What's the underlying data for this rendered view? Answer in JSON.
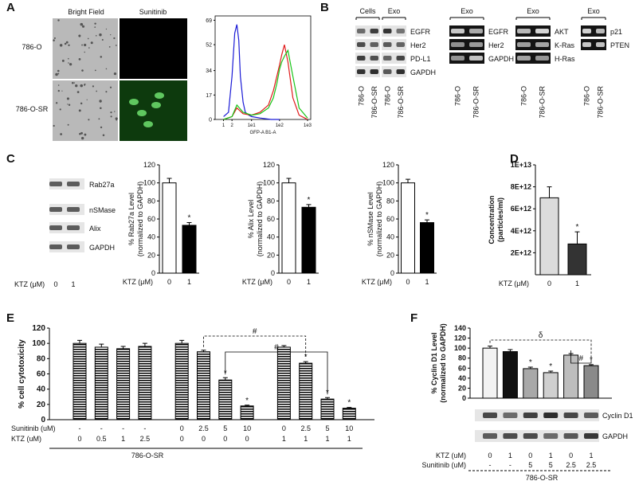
{
  "figure": {
    "panel_labels": [
      "A",
      "B",
      "C",
      "D",
      "E",
      "F"
    ],
    "a": {
      "columns": [
        "Bright Field",
        "Sunitinib"
      ],
      "rows": [
        "786-O",
        "786-O-SR"
      ]
    },
    "b_blots": [
      {
        "groups": [
          "Cells",
          "Exo"
        ],
        "bands": [
          "EGFR",
          "Her2",
          "PD-L1",
          "GAPDH"
        ],
        "lanes": [
          "786-O",
          "786-O-SR",
          "786-O",
          "786-O-SR"
        ]
      },
      {
        "groups": [
          "Exo"
        ],
        "bands": [
          "EGFR",
          "Her2",
          "GAPDH"
        ],
        "lanes": [
          "786-O",
          "786-O-SR"
        ]
      },
      {
        "groups": [
          "Exo"
        ],
        "bands": [
          "AKT",
          "K-Ras",
          "H-Ras"
        ],
        "lanes": [
          "786-O",
          "786-O-SR"
        ]
      },
      {
        "groups": [
          "Exo"
        ],
        "bands": [
          "p21",
          "PTEN"
        ],
        "lanes": [
          "786-O",
          "786-O-SR"
        ]
      }
    ],
    "c_blot": {
      "bands": [
        "Rab27a",
        "nSMase",
        "Alix",
        "GAPDH"
      ],
      "condition_label": "KTZ (μM)",
      "lanes": [
        "0",
        "1"
      ]
    },
    "f_blot": {
      "bands": [
        "Cyclin D1",
        "GAPDH"
      ]
    }
  },
  "chart_data": [
    {
      "type": "line",
      "xlabel": "GFP-A B1-A",
      "log_x": true,
      "xlim": [
        0.5,
        1300
      ],
      "xticks": [
        1,
        2,
        {
          "value": 10,
          "label": "1e1"
        },
        {
          "value": 100,
          "label": "1e2"
        },
        {
          "value": 1000,
          "label": "1e3"
        }
      ],
      "ylim": [
        0,
        72
      ],
      "yticks": [
        0,
        17,
        34,
        52,
        69
      ],
      "series": [
        {
          "color": "#1a1ad6",
          "x": [
            1,
            1.5,
            2,
            2.5,
            3,
            3.5,
            4,
            5,
            6,
            8,
            10,
            20,
            50,
            100
          ],
          "values": [
            2,
            5,
            30,
            60,
            66,
            55,
            30,
            12,
            5,
            3,
            2,
            1,
            0,
            0
          ]
        },
        {
          "color": "#e01a1a",
          "x": [
            1,
            2,
            3,
            5,
            10,
            20,
            40,
            60,
            80,
            100,
            120,
            150,
            200,
            300,
            500,
            1000
          ],
          "values": [
            0,
            2,
            8,
            4,
            3,
            5,
            10,
            20,
            30,
            38,
            45,
            52,
            40,
            15,
            3,
            0
          ]
        },
        {
          "color": "#16c416",
          "x": [
            1,
            2,
            3,
            5,
            10,
            20,
            40,
            60,
            80,
            100,
            120,
            150,
            200,
            300,
            500,
            1000
          ],
          "values": [
            0,
            2,
            10,
            5,
            3,
            4,
            8,
            15,
            25,
            35,
            40,
            44,
            48,
            30,
            8,
            1
          ]
        }
      ]
    },
    {
      "type": "bar",
      "ylabel": [
        "% Rab27a Level",
        "(normalized to GAPDH)"
      ],
      "xlabel": "KTZ (μM)",
      "categories": [
        "0",
        "1"
      ],
      "values": [
        100,
        53
      ],
      "errors": [
        5,
        3
      ],
      "annotations": [
        null,
        "*"
      ],
      "colors": [
        "#ffffff",
        "#000000"
      ],
      "ylim": [
        0,
        120
      ],
      "yticks": [
        0,
        20,
        40,
        60,
        80,
        100,
        120
      ]
    },
    {
      "type": "bar",
      "ylabel": [
        "% Alix Level",
        "(normalized to GAPDH)"
      ],
      "xlabel": "KTZ (μM)",
      "categories": [
        "0",
        "1"
      ],
      "values": [
        100,
        73
      ],
      "errors": [
        5,
        3
      ],
      "annotations": [
        null,
        "*"
      ],
      "colors": [
        "#ffffff",
        "#000000"
      ],
      "ylim": [
        0,
        120
      ],
      "yticks": [
        0,
        20,
        40,
        60,
        80,
        100,
        120
      ]
    },
    {
      "type": "bar",
      "ylabel": [
        "% nSMase Level",
        "(normalized to GAPDH)"
      ],
      "xlabel": "KTZ (μM)",
      "categories": [
        "0",
        "1"
      ],
      "values": [
        100,
        56
      ],
      "errors": [
        4,
        3
      ],
      "annotations": [
        null,
        "*"
      ],
      "colors": [
        "#ffffff",
        "#000000"
      ],
      "ylim": [
        0,
        120
      ],
      "yticks": [
        0,
        20,
        40,
        60,
        80,
        100,
        120
      ]
    },
    {
      "type": "bar",
      "ylabel": [
        "Concentration",
        "(particles/ml)"
      ],
      "xlabel": "KTZ (μM)",
      "categories": [
        "0",
        "1"
      ],
      "values": [
        7000000000000,
        2800000000000
      ],
      "errors": [
        1000000000000,
        1100000000000
      ],
      "annotations": [
        null,
        "*"
      ],
      "colors": [
        "#dcdcdc",
        "#333333"
      ],
      "ylim": [
        0,
        10000000000000
      ],
      "yticks": [
        {
          "value": 2000000000000,
          "label": "2E+12"
        },
        {
          "value": 4000000000000,
          "label": "4E+12"
        },
        {
          "value": 6000000000000,
          "label": "6E+12"
        },
        {
          "value": 8000000000000,
          "label": "8E+12"
        },
        {
          "value": 10000000000000,
          "label": "1E+13"
        }
      ]
    },
    {
      "type": "bar",
      "ylabel": [
        "% cell cytotoxicity"
      ],
      "values": [
        100,
        95,
        93,
        96,
        100,
        89,
        52,
        18,
        95,
        74,
        27,
        15
      ],
      "errors": [
        4,
        4,
        3,
        4,
        4,
        2,
        3,
        1,
        2,
        2,
        2,
        1
      ],
      "annotations": [
        null,
        null,
        null,
        null,
        null,
        null,
        "*",
        "*",
        null,
        "*",
        "*",
        "*"
      ],
      "color": "#000000",
      "ylim": [
        0,
        120
      ],
      "yticks": [
        0,
        20,
        40,
        60,
        80,
        100,
        120
      ],
      "row_labels": [
        {
          "label": "Sunitinib (uM)",
          "values": [
            "-",
            "-",
            "-",
            "-",
            "0",
            "2.5",
            "5",
            "10",
            "0",
            "2.5",
            "5",
            "10"
          ]
        },
        {
          "label": "KTZ (uM)",
          "values": [
            "0",
            "0.5",
            "1",
            "2.5",
            "0",
            "0",
            "0",
            "0",
            "1",
            "1",
            "1",
            "1"
          ]
        }
      ],
      "group_label": "786-O-SR",
      "brackets": [
        {
          "label": "#",
          "from": 5,
          "to": 9,
          "style": "dashed"
        },
        {
          "label": "#",
          "from": 6,
          "to": 10,
          "style": "solid"
        }
      ]
    },
    {
      "type": "bar",
      "ylabel": [
        "% Cyclin D1 Level",
        "(normalized to GAPDH)"
      ],
      "values": [
        100,
        93,
        59,
        51,
        86,
        65
      ],
      "errors": [
        4,
        4,
        3,
        3,
        3,
        2
      ],
      "annotations": [
        null,
        null,
        "*",
        "*",
        null,
        "*"
      ],
      "colors": [
        "#f2f2f2",
        "#111111",
        "#a8a8a8",
        "#cfcfcf",
        "#bdbdbd",
        "#8a8a8a"
      ],
      "ylim": [
        0,
        140
      ],
      "yticks": [
        0,
        20,
        40,
        60,
        80,
        100,
        120,
        140
      ],
      "row_labels": [
        {
          "label": "KTZ (uM)",
          "values": [
            "0",
            "1",
            "0",
            "1",
            "0",
            "1"
          ]
        },
        {
          "label": "Sunitinib (uM)",
          "values": [
            "-",
            "-",
            "5",
            "5",
            "2.5",
            "2.5"
          ]
        }
      ],
      "group_label": "786-O-SR",
      "brackets": [
        {
          "label": "δ",
          "from": 0,
          "to": 5,
          "style": "dashed"
        },
        {
          "label": "#",
          "from": 4,
          "to": 5,
          "style": "solid"
        }
      ]
    }
  ]
}
